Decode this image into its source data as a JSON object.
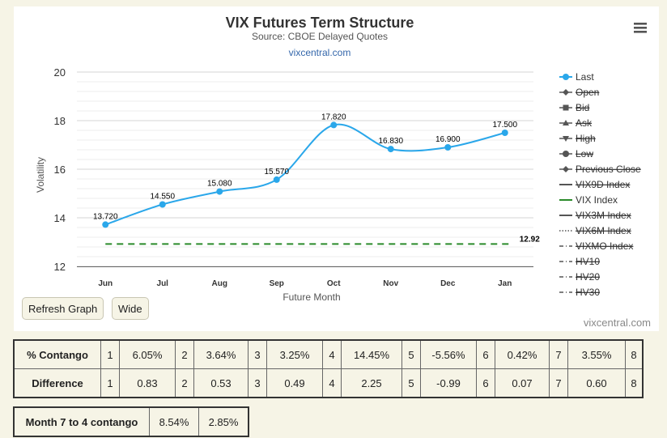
{
  "chart_data": {
    "type": "line",
    "title": "VIX Futures Term Structure",
    "subtitle": "Source: CBOE Delayed Quotes",
    "source_link": "vixcentral.com",
    "credits": "vixcentral.com",
    "xlabel": "Future Month",
    "ylabel": "Volatility",
    "categories": [
      "Jun",
      "Jul",
      "Aug",
      "Sep",
      "Oct",
      "Nov",
      "Dec",
      "Jan"
    ],
    "ylim": [
      12,
      20
    ],
    "yticks": [
      "12",
      "14",
      "16",
      "18",
      "20"
    ],
    "grid": true,
    "legend_position": "right",
    "series": [
      {
        "name": "Last",
        "values": [
          13.72,
          14.55,
          15.08,
          15.57,
          17.82,
          16.83,
          16.9,
          17.5
        ],
        "labels": [
          "13.720",
          "14.550",
          "15.080",
          "15.570",
          "17.820",
          "16.830",
          "16.900",
          "17.500"
        ],
        "color": "#2aa7ea"
      },
      {
        "name": "VIX Index",
        "value": 12.92,
        "label": "12.92",
        "color": "#2a8a2a",
        "style": "dashed"
      }
    ],
    "legend": [
      {
        "name": "Last",
        "visible": true
      },
      {
        "name": "Open",
        "visible": false
      },
      {
        "name": "Bid",
        "visible": false
      },
      {
        "name": "Ask",
        "visible": false
      },
      {
        "name": "High",
        "visible": false
      },
      {
        "name": "Low",
        "visible": false
      },
      {
        "name": "Previous Close",
        "visible": false
      },
      {
        "name": "VIX9D Index",
        "visible": false
      },
      {
        "name": "VIX Index",
        "visible": true
      },
      {
        "name": "VIX3M Index",
        "visible": false
      },
      {
        "name": "VIX6M Index",
        "visible": false
      },
      {
        "name": "VIXMO Index",
        "visible": false
      },
      {
        "name": "HV10",
        "visible": false
      },
      {
        "name": "HV20",
        "visible": false
      },
      {
        "name": "HV30",
        "visible": false
      }
    ]
  },
  "buttons": {
    "refresh": "Refresh Graph",
    "wide": "Wide"
  },
  "tables": {
    "contango": {
      "label": "% Contango",
      "cells": [
        [
          "1",
          "6.05%"
        ],
        [
          "2",
          "3.64%"
        ],
        [
          "3",
          "3.25%"
        ],
        [
          "4",
          "14.45%"
        ],
        [
          "5",
          "-5.56%"
        ],
        [
          "6",
          "0.42%"
        ],
        [
          "7",
          "3.55%"
        ]
      ],
      "trailing": "8"
    },
    "difference": {
      "label": "Difference",
      "cells": [
        [
          "1",
          "0.83"
        ],
        [
          "2",
          "0.53"
        ],
        [
          "3",
          "0.49"
        ],
        [
          "4",
          "2.25"
        ],
        [
          "5",
          "-0.99"
        ],
        [
          "6",
          "0.07"
        ],
        [
          "7",
          "0.60"
        ]
      ],
      "trailing": "8"
    },
    "month_contango": {
      "label": "Month 7 to 4 contango",
      "values": [
        "8.54%",
        "2.85%"
      ]
    }
  },
  "colors": {
    "last": "#2aa7ea",
    "vix": "#2a8a2a",
    "background": "#f6f4e6"
  },
  "icons": {
    "menu": "hamburger-menu-icon"
  }
}
